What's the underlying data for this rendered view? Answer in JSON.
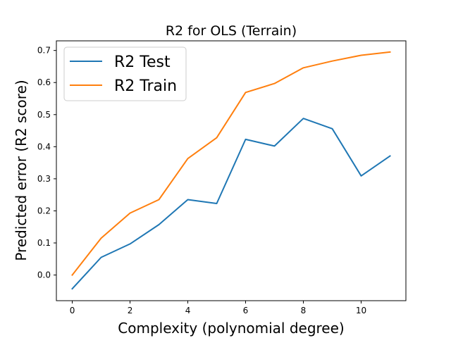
{
  "chart_data": {
    "type": "line",
    "title": "R2 for OLS (Terrain)",
    "xlabel": "Complexity (polynomial degree)",
    "ylabel": "Predicted error (R2 score)",
    "xlim": [
      -0.55,
      11.55
    ],
    "ylim": [
      -0.08,
      0.73
    ],
    "xticks": [
      0,
      2,
      4,
      6,
      8,
      10
    ],
    "yticks": [
      0.0,
      0.1,
      0.2,
      0.3,
      0.4,
      0.5,
      0.6,
      0.7
    ],
    "grid": false,
    "legend_position": "top-left",
    "x": [
      0,
      1,
      2,
      3,
      4,
      5,
      6,
      7,
      8,
      9,
      10,
      11
    ],
    "series": [
      {
        "name": "R2 Test",
        "color": "#1f77b4",
        "values": [
          -0.043,
          0.055,
          0.097,
          0.157,
          0.235,
          0.223,
          0.423,
          0.402,
          0.488,
          0.456,
          0.309,
          0.371
        ]
      },
      {
        "name": "R2 Train",
        "color": "#ff7f0e",
        "values": [
          0.0,
          0.115,
          0.193,
          0.235,
          0.363,
          0.428,
          0.569,
          0.597,
          0.646,
          0.667,
          0.685,
          0.695
        ]
      }
    ]
  }
}
